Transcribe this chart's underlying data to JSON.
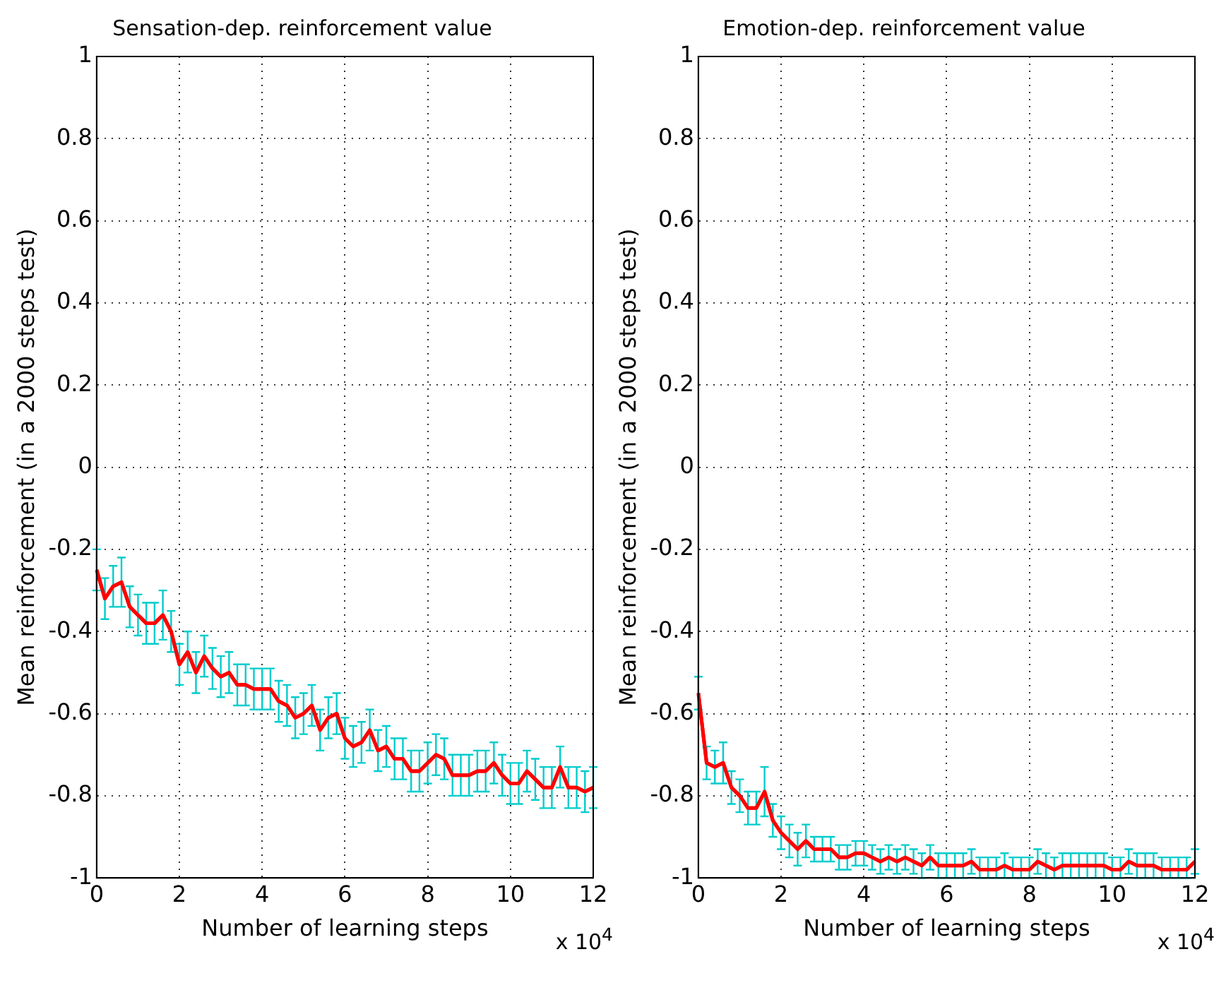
{
  "chart_data": [
    {
      "type": "line",
      "title": "Sensation-dep. reinforcement value",
      "xlabel": "Number of learning steps",
      "ylabel": "Mean reinforcement (in a 2000 steps test)",
      "annotations": [
        "x 10$^{4}$"
      ],
      "x": [
        0,
        0.2,
        0.4,
        0.6,
        0.8,
        1,
        1.2,
        1.4,
        1.6,
        1.8,
        2,
        2.2,
        2.4,
        2.6,
        2.8,
        3,
        3.2,
        3.4,
        3.6,
        3.8,
        4,
        4.2,
        4.4,
        4.6,
        4.8,
        5,
        5.2,
        5.4,
        5.6,
        5.8,
        6,
        6.2,
        6.4,
        6.6,
        6.8,
        7,
        7.2,
        7.4,
        7.6,
        7.8,
        8,
        8.2,
        8.4,
        8.6,
        8.8,
        9,
        9.2,
        9.4,
        9.6,
        9.8,
        10,
        10.2,
        10.4,
        10.6,
        10.8,
        11,
        11.2,
        11.4,
        11.6,
        11.8,
        12
      ],
      "series": [
        {
          "color": "#ff0000",
          "values": [
            -0.25,
            -0.32,
            -0.29,
            -0.28,
            -0.34,
            -0.36,
            -0.38,
            -0.38,
            -0.36,
            -0.4,
            -0.48,
            -0.45,
            -0.5,
            -0.46,
            -0.49,
            -0.51,
            -0.5,
            -0.53,
            -0.53,
            -0.54,
            -0.54,
            -0.54,
            -0.57,
            -0.58,
            -0.61,
            -0.6,
            -0.58,
            -0.64,
            -0.61,
            -0.6,
            -0.66,
            -0.68,
            -0.67,
            -0.64,
            -0.69,
            -0.68,
            -0.71,
            -0.71,
            -0.74,
            -0.74,
            -0.72,
            -0.7,
            -0.71,
            -0.75,
            -0.75,
            -0.75,
            -0.74,
            -0.74,
            -0.72,
            -0.75,
            -0.77,
            -0.77,
            -0.74,
            -0.76,
            -0.78,
            -0.78,
            -0.73,
            -0.78,
            -0.78,
            -0.79,
            -0.78
          ],
          "errors": [
            0.05,
            0.05,
            0.05,
            0.06,
            0.05,
            0.05,
            0.05,
            0.05,
            0.06,
            0.05,
            0.05,
            0.05,
            0.05,
            0.05,
            0.05,
            0.05,
            0.05,
            0.05,
            0.05,
            0.05,
            0.05,
            0.05,
            0.05,
            0.05,
            0.05,
            0.05,
            0.05,
            0.05,
            0.05,
            0.05,
            0.05,
            0.05,
            0.05,
            0.05,
            0.05,
            0.05,
            0.05,
            0.05,
            0.05,
            0.05,
            0.05,
            0.05,
            0.05,
            0.05,
            0.05,
            0.05,
            0.05,
            0.05,
            0.05,
            0.05,
            0.05,
            0.05,
            0.05,
            0.05,
            0.05,
            0.05,
            0.05,
            0.05,
            0.05,
            0.05,
            0.05
          ]
        }
      ],
      "xlim": [
        0,
        12
      ],
      "xticks": [
        0,
        2,
        4,
        6,
        8,
        10,
        12
      ],
      "ylim": [
        -1,
        1
      ],
      "yticks": [
        -1,
        -0.8,
        -0.6,
        -0.4,
        -0.2,
        0,
        0.2,
        0.4,
        0.6,
        0.8,
        1
      ],
      "grid": true,
      "marker": "none"
    },
    {
      "type": "line",
      "title": "Emotion-dep. reinforcement value",
      "xlabel": "Number of learning steps",
      "ylabel": "Mean reinforcement (in a 2000 steps test)",
      "annotations": [
        "x 10$^{4}$"
      ],
      "x": [
        0,
        0.2,
        0.4,
        0.6,
        0.8,
        1,
        1.2,
        1.4,
        1.6,
        1.8,
        2,
        2.2,
        2.4,
        2.6,
        2.8,
        3,
        3.2,
        3.4,
        3.6,
        3.8,
        4,
        4.2,
        4.4,
        4.6,
        4.8,
        5,
        5.2,
        5.4,
        5.6,
        5.8,
        6,
        6.2,
        6.4,
        6.6,
        6.8,
        7,
        7.2,
        7.4,
        7.6,
        7.8,
        8,
        8.2,
        8.4,
        8.6,
        8.8,
        9,
        9.2,
        9.4,
        9.6,
        9.8,
        10,
        10.2,
        10.4,
        10.6,
        10.8,
        11,
        11.2,
        11.4,
        11.6,
        11.8,
        12
      ],
      "series": [
        {
          "color": "#ff0000",
          "values": [
            -0.55,
            -0.72,
            -0.73,
            -0.72,
            -0.78,
            -0.8,
            -0.83,
            -0.83,
            -0.79,
            -0.86,
            -0.89,
            -0.91,
            -0.93,
            -0.91,
            -0.93,
            -0.93,
            -0.93,
            -0.95,
            -0.95,
            -0.94,
            -0.94,
            -0.95,
            -0.96,
            -0.95,
            -0.96,
            -0.95,
            -0.96,
            -0.97,
            -0.95,
            -0.97,
            -0.97,
            -0.97,
            -0.97,
            -0.96,
            -0.98,
            -0.98,
            -0.98,
            -0.97,
            -0.98,
            -0.98,
            -0.98,
            -0.96,
            -0.97,
            -0.98,
            -0.97,
            -0.97,
            -0.97,
            -0.97,
            -0.97,
            -0.97,
            -0.98,
            -0.98,
            -0.96,
            -0.97,
            -0.97,
            -0.97,
            -0.98,
            -0.98,
            -0.98,
            -0.98,
            -0.96
          ],
          "errors": [
            0.04,
            0.04,
            0.04,
            0.05,
            0.04,
            0.04,
            0.04,
            0.04,
            0.06,
            0.04,
            0.04,
            0.04,
            0.04,
            0.04,
            0.03,
            0.03,
            0.03,
            0.03,
            0.03,
            0.03,
            0.03,
            0.03,
            0.03,
            0.03,
            0.03,
            0.03,
            0.03,
            0.03,
            0.03,
            0.03,
            0.03,
            0.03,
            0.03,
            0.03,
            [
              -1,
              -0.95
            ],
            [
              -1,
              -0.95
            ],
            [
              -1,
              -0.95
            ],
            0.03,
            [
              -1,
              -0.95
            ],
            [
              -1,
              -0.95
            ],
            [
              -1,
              -0.95
            ],
            0.03,
            0.03,
            [
              -1,
              -0.95
            ],
            0.03,
            0.03,
            0.03,
            0.03,
            0.03,
            0.03,
            [
              -1,
              -0.95
            ],
            [
              -1,
              -0.95
            ],
            0.03,
            0.03,
            0.03,
            0.03,
            [
              -1,
              -0.95
            ],
            [
              -1,
              -0.95
            ],
            [
              -1,
              -0.95
            ],
            [
              -1,
              -0.95
            ],
            0.03
          ]
        }
      ],
      "xlim": [
        0,
        12
      ],
      "xticks": [
        0,
        2,
        4,
        6,
        8,
        10,
        12
      ],
      "ylim": [
        -1,
        1
      ],
      "yticks": [
        -1,
        -0.8,
        -0.6,
        -0.4,
        -0.2,
        0,
        0.2,
        0.4,
        0.6,
        0.8,
        1
      ],
      "grid": true,
      "marker": "none"
    }
  ]
}
